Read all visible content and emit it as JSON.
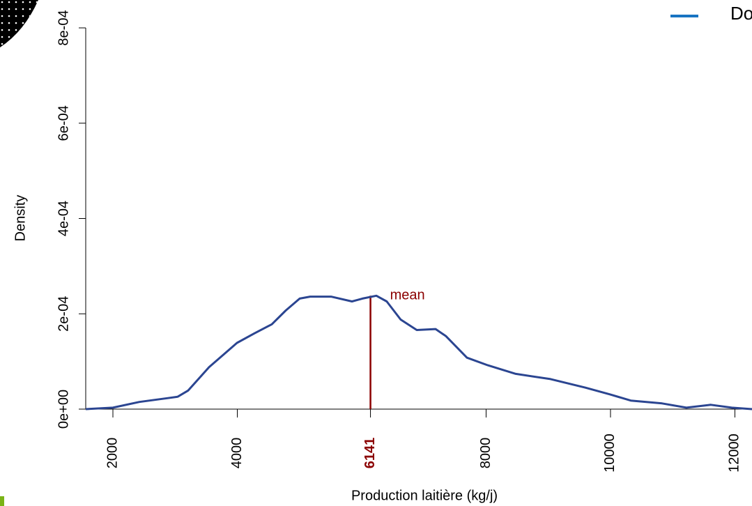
{
  "chart_data": {
    "type": "line",
    "x_label": "Production laitière (kg/j)",
    "y_label": "Density",
    "series": [
      {
        "name": "Do",
        "color": "#2b4591",
        "legend_color": "#1874c2",
        "x": [
          1563,
          2000,
          2426,
          2874,
          3042,
          3210,
          3546,
          3994,
          4275,
          4555,
          4779,
          5003,
          5171,
          5507,
          5843,
          6011,
          6235,
          6403,
          6627,
          6885,
          7188,
          7356,
          7692,
          8028,
          8476,
          9036,
          9597,
          9989,
          10325,
          10829,
          11221,
          11613,
          11949,
          12275
        ],
        "values": [
          0,
          3e-06,
          1.5e-05,
          2.3e-05,
          2.6e-05,
          3.9e-05,
          8.8e-05,
          0.000139,
          0.000159,
          0.000178,
          0.000207,
          0.000232,
          0.000236,
          0.000236,
          0.000226,
          0.000232,
          0.000238,
          0.000226,
          0.000188,
          0.000166,
          0.000168,
          0.000153,
          0.000108,
          9.2e-05,
          7.4e-05,
          6.3e-05,
          4.5e-05,
          3.1e-05,
          1.8e-05,
          1.2e-05,
          3e-06,
          9e-06,
          3e-06,
          0
        ]
      }
    ],
    "mean": 6141,
    "mean_height": 0.000238,
    "mean_label": "mean",
    "mean_color": "#8b0000",
    "xlim": [
      1563,
      12275
    ],
    "xticks": [
      2000,
      4000,
      8000,
      10000,
      12000
    ],
    "ylim": [
      0,
      0.0008
    ],
    "yticks": [
      {
        "value": 0,
        "label": "0e+00"
      },
      {
        "value": 0.0002,
        "label": "2e-04"
      },
      {
        "value": 0.0004,
        "label": "4e-04"
      },
      {
        "value": 0.0006,
        "label": "6e-04"
      },
      {
        "value": 0.0008,
        "label": "8e-04"
      }
    ]
  }
}
